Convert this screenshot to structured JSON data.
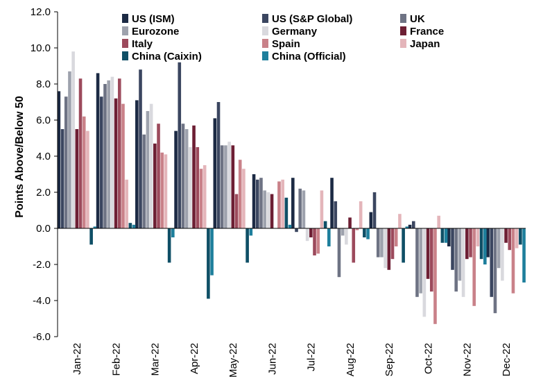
{
  "chart_data": {
    "type": "bar",
    "title": "",
    "xlabel": "",
    "ylabel": "Points Above/Below 50",
    "ylim": [
      -6.0,
      12.0
    ],
    "yticks": [
      "12.0",
      "10.0",
      "8.0",
      "6.0",
      "4.0",
      "2.0",
      "0.0",
      "-2.0",
      "-4.0",
      "-6.0"
    ],
    "ytick_values": [
      12,
      10,
      8,
      6,
      4,
      2,
      0,
      -2,
      -4,
      -6
    ],
    "categories": [
      "Jan-22",
      "Feb-22",
      "Mar-22",
      "Apr-22",
      "May-22",
      "Jun-22",
      "Jul-22",
      "Aug-22",
      "Sep-22",
      "Oct-22",
      "Nov-22",
      "Dec-22"
    ],
    "grid": false,
    "legend_position": "top",
    "series": [
      {
        "name": "US (ISM)",
        "color": "#1c2a44",
        "values": [
          7.6,
          8.6,
          7.1,
          5.4,
          6.1,
          3.0,
          2.8,
          2.8,
          0.9,
          0.2,
          -1.0,
          -1.6
        ]
      },
      {
        "name": "US (S&P Global)",
        "color": "#3b4660",
        "values": [
          5.5,
          7.3,
          8.8,
          9.2,
          7.0,
          2.7,
          -0.2,
          1.5,
          2.0,
          0.4,
          -2.3,
          -3.8
        ]
      },
      {
        "name": "UK",
        "color": "#6e7384",
        "values": [
          7.3,
          8.0,
          5.2,
          5.8,
          4.6,
          2.8,
          2.2,
          -2.7,
          -1.6,
          -3.8,
          -3.5,
          -4.7
        ]
      },
      {
        "name": "Eurozone",
        "color": "#9ea2ad",
        "values": [
          8.7,
          8.2,
          6.5,
          5.5,
          4.6,
          2.1,
          2.1,
          -0.4,
          -1.6,
          -3.6,
          -2.9,
          -2.2
        ]
      },
      {
        "name": "Germany",
        "color": "#d9d9de",
        "values": [
          9.8,
          8.4,
          6.9,
          4.5,
          4.8,
          2.0,
          -0.7,
          -0.9,
          -2.2,
          -4.9,
          -3.8,
          -2.9
        ]
      },
      {
        "name": "France",
        "color": "#6d1f34",
        "values": [
          5.5,
          7.2,
          4.7,
          5.7,
          4.6,
          1.9,
          -0.5,
          0.6,
          -2.3,
          -2.8,
          -1.7,
          -0.8
        ]
      },
      {
        "name": "Italy",
        "color": "#9c4a5c",
        "values": [
          8.3,
          8.3,
          5.8,
          4.5,
          1.9,
          0.0,
          -1.5,
          -1.9,
          -1.7,
          -3.5,
          -1.6,
          -1.2
        ]
      },
      {
        "name": "Spain",
        "color": "#c98189",
        "values": [
          6.2,
          6.9,
          4.2,
          3.3,
          3.8,
          2.6,
          -1.4,
          -0.1,
          -1.0,
          -5.3,
          -4.3,
          -3.6
        ]
      },
      {
        "name": "Japan",
        "color": "#e4b5ba",
        "values": [
          5.4,
          2.7,
          4.1,
          3.5,
          3.3,
          2.7,
          2.1,
          1.5,
          0.8,
          0.7,
          -1.0,
          -1.1
        ]
      },
      {
        "name": "China (Caixin)",
        "color": "#0f4f66",
        "values": [
          -0.9,
          0.3,
          -1.9,
          -3.9,
          -1.9,
          1.7,
          0.4,
          -0.5,
          -1.9,
          -0.8,
          -1.7,
          -0.9
        ]
      },
      {
        "name": "China (Official)",
        "color": "#1e7f9c",
        "values": [
          0.1,
          0.2,
          -0.5,
          -2.6,
          -0.4,
          0.2,
          -1.0,
          -0.6,
          0.1,
          -0.8,
          -2.0,
          -3.0
        ]
      }
    ]
  }
}
